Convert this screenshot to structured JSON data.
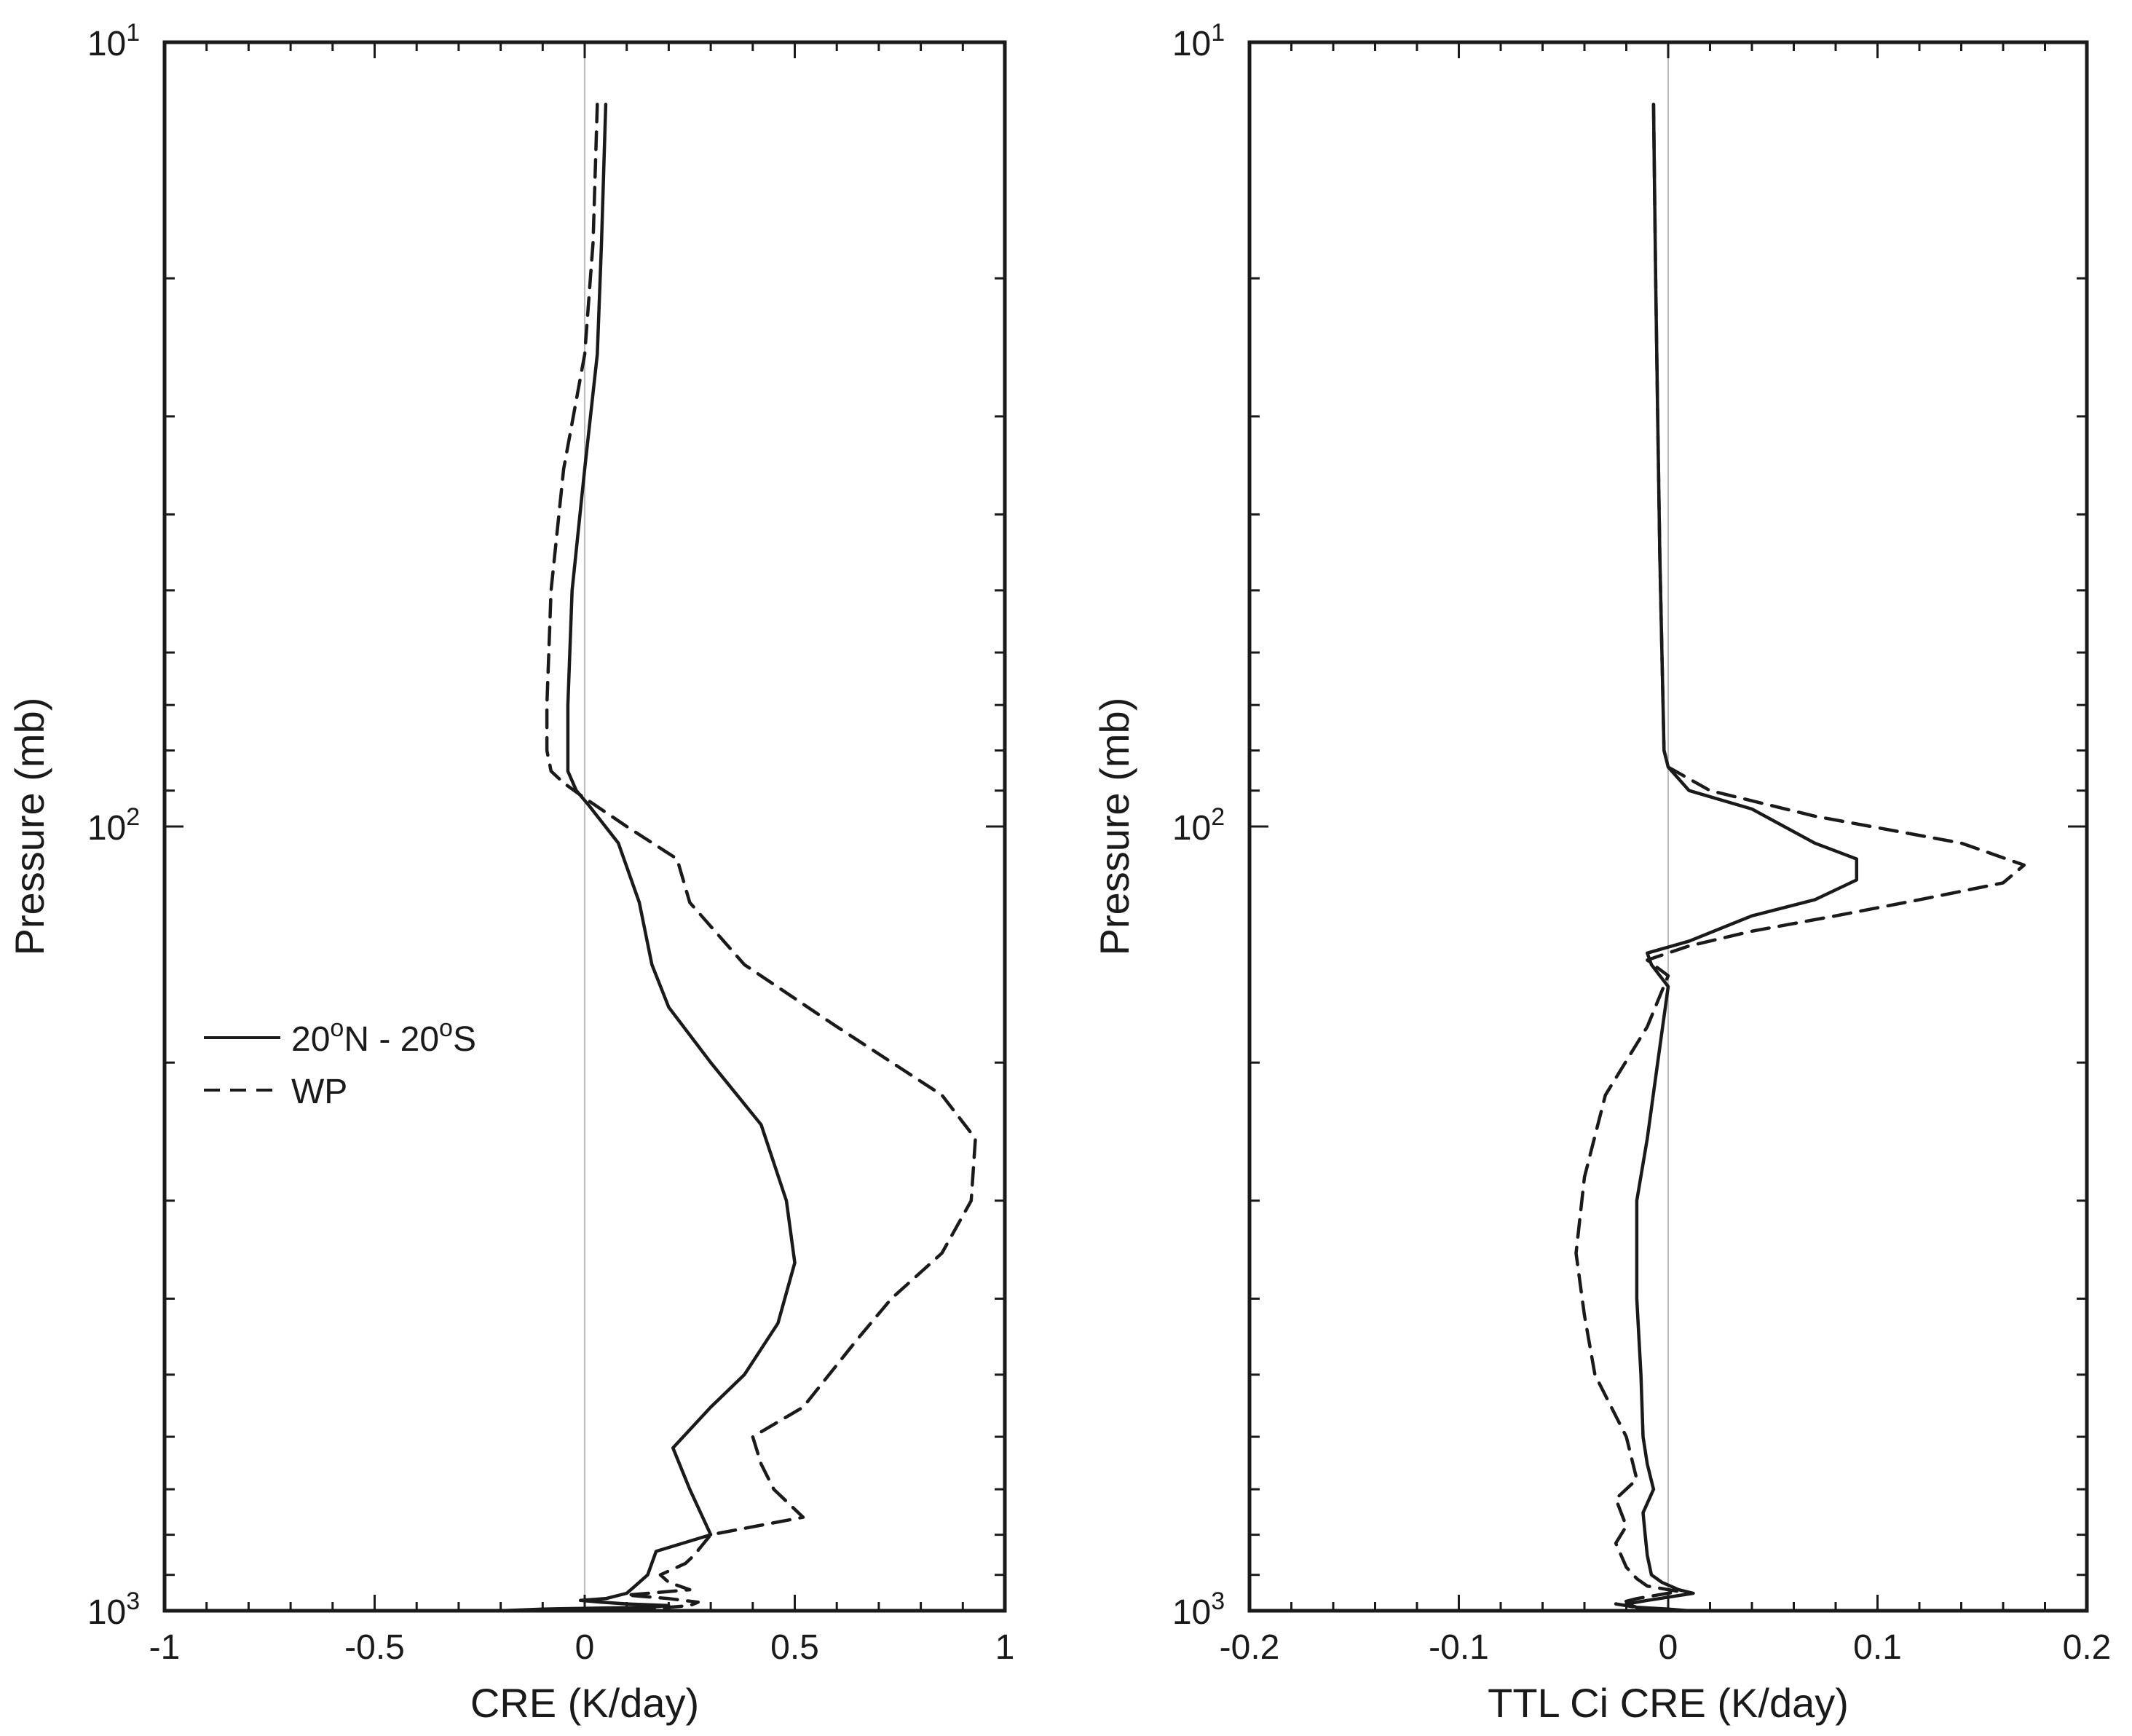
{
  "chart_data": [
    {
      "type": "line",
      "xlabel": "CRE (K/day)",
      "ylabel": "Pressure (mb)",
      "xlim": [
        -1,
        1
      ],
      "ylim": [
        1000,
        10
      ],
      "yscale": "log",
      "y_reversed": true,
      "x_tick_labels": [
        "-1",
        "-0.5",
        "0",
        "0.5",
        "1"
      ],
      "x_ticks": [
        -1,
        -0.5,
        0,
        0.5,
        1
      ],
      "y_tick_labels": [
        {
          "base": "10",
          "exp": "1"
        },
        {
          "base": "10",
          "exp": "2"
        },
        {
          "base": "10",
          "exp": "3"
        }
      ],
      "y_ticks": [
        10,
        100,
        1000
      ],
      "zero_line": true,
      "legend": {
        "placement": "middle-left",
        "entries": [
          {
            "series": "20N-20S",
            "text_parts": [
              "20",
              "o",
              "N - 20",
              "o",
              "S"
            ]
          },
          {
            "series": "WP",
            "text_parts": [
              "WP"
            ]
          }
        ]
      },
      "series": [
        {
          "name": "20N-20S",
          "style": "solid",
          "x": [
            0.05,
            0.04,
            0.03,
            0.0,
            -0.03,
            -0.04,
            -0.04,
            -0.02,
            0.01,
            0.08,
            0.13,
            0.16,
            0.2,
            0.3,
            0.42,
            0.48,
            0.5,
            0.46,
            0.38,
            0.3,
            0.21,
            0.25,
            0.3,
            0.17,
            0.15,
            0.12,
            0.1,
            0.05,
            -0.01,
            0.04,
            0.1,
            0.2,
            0.15,
            -0.1,
            -0.2
          ],
          "y": [
            12,
            18,
            25,
            35,
            50,
            70,
            85,
            90,
            94,
            105,
            125,
            150,
            170,
            200,
            240,
            300,
            360,
            430,
            500,
            550,
            620,
            700,
            800,
            840,
            900,
            930,
            950,
            965,
            970,
            975,
            980,
            985,
            990,
            995,
            1000
          ]
        },
        {
          "name": "WP",
          "style": "dashed",
          "x": [
            0.03,
            0.02,
            0.0,
            -0.05,
            -0.08,
            -0.09,
            -0.09,
            -0.08,
            -0.05,
            0.0,
            0.1,
            0.22,
            0.25,
            0.38,
            0.6,
            0.85,
            0.93,
            0.92,
            0.85,
            0.73,
            0.65,
            0.52,
            0.4,
            0.42,
            0.45,
            0.52,
            0.3,
            0.26,
            0.24,
            0.18,
            0.2,
            0.25,
            0.1,
            0.2,
            0.27,
            0.25,
            0.15,
            0.1
          ],
          "y": [
            12,
            18,
            25,
            35,
            50,
            70,
            80,
            85,
            88,
            92,
            100,
            110,
            125,
            150,
            180,
            220,
            250,
            300,
            350,
            400,
            450,
            550,
            600,
            650,
            700,
            760,
            800,
            850,
            870,
            900,
            920,
            940,
            955,
            965,
            975,
            985,
            995,
            1000
          ]
        }
      ]
    },
    {
      "type": "line",
      "xlabel": "TTL Ci CRE (K/day)",
      "ylabel": "Pressure (mb)",
      "xlim": [
        -0.2,
        0.2
      ],
      "ylim": [
        1000,
        10
      ],
      "yscale": "log",
      "y_reversed": true,
      "x_tick_labels": [
        "-0.2",
        "-0.1",
        "0",
        "0.1",
        "0.2"
      ],
      "x_ticks": [
        -0.2,
        -0.1,
        0,
        0.1,
        0.2
      ],
      "y_tick_labels": [
        {
          "base": "10",
          "exp": "1"
        },
        {
          "base": "10",
          "exp": "2"
        },
        {
          "base": "10",
          "exp": "3"
        }
      ],
      "y_ticks": [
        10,
        100,
        1000
      ],
      "zero_line": true,
      "series": [
        {
          "name": "20N-20S",
          "style": "solid",
          "x": [
            -0.007,
            -0.006,
            -0.005,
            -0.004,
            -0.003,
            -0.002,
            0.0,
            0.01,
            0.04,
            0.07,
            0.09,
            0.09,
            0.07,
            0.04,
            0.01,
            -0.01,
            -0.008,
            0.0,
            -0.005,
            -0.01,
            -0.015,
            -0.015,
            -0.013,
            -0.012,
            -0.01,
            -0.007,
            -0.012,
            -0.011,
            -0.01,
            -0.008,
            -0.003,
            0.005,
            0.012,
            -0.01,
            -0.02,
            -0.015,
            0.0,
            0.01
          ],
          "y": [
            12,
            20,
            30,
            45,
            60,
            80,
            84,
            90,
            95,
            105,
            110,
            117,
            124,
            130,
            140,
            145,
            150,
            160,
            200,
            250,
            300,
            400,
            500,
            600,
            650,
            700,
            750,
            800,
            850,
            900,
            920,
            940,
            950,
            970,
            980,
            990,
            995,
            1000
          ]
        },
        {
          "name": "WP",
          "style": "dashed",
          "x": [
            -0.007,
            -0.006,
            -0.005,
            -0.004,
            -0.003,
            -0.002,
            0.0,
            0.02,
            0.07,
            0.14,
            0.17,
            0.16,
            0.12,
            0.08,
            0.04,
            0.01,
            -0.01,
            0.0,
            -0.01,
            -0.03,
            -0.04,
            -0.044,
            -0.04,
            -0.035,
            -0.02,
            -0.015,
            -0.025,
            -0.02,
            -0.025,
            -0.02,
            -0.015,
            -0.01,
            0.005,
            -0.015,
            -0.025,
            -0.015,
            0.0
          ],
          "y": [
            12,
            20,
            30,
            45,
            60,
            80,
            84,
            90,
            97,
            105,
            112,
            118,
            124,
            130,
            136,
            142,
            148,
            155,
            180,
            220,
            280,
            350,
            420,
            500,
            600,
            680,
            720,
            780,
            820,
            880,
            910,
            930,
            945,
            965,
            980,
            990,
            1000
          ]
        }
      ]
    }
  ]
}
